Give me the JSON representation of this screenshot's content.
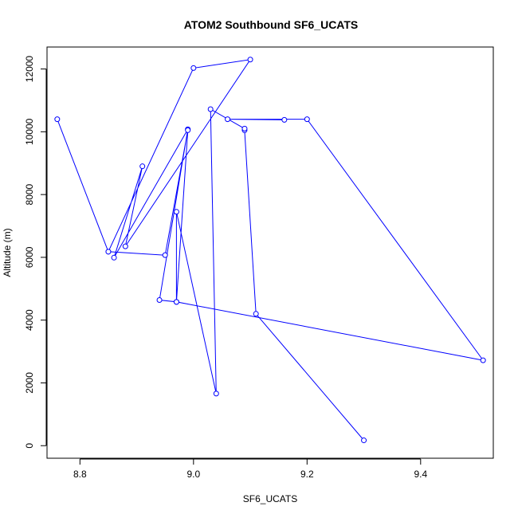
{
  "chart_data": {
    "type": "line",
    "title": "ATOM2 Southbound SF6_UCATS",
    "xlabel": "SF6_UCATS",
    "ylabel": "Altitude (m)",
    "xlim": [
      8.742,
      9.528
    ],
    "ylim": [
      -400,
      12700
    ],
    "x_ticks": [
      8.8,
      9.0,
      9.2,
      9.4
    ],
    "x_tick_labels": [
      "8.8",
      "9.0",
      "9.2",
      "9.4"
    ],
    "y_ticks": [
      0,
      2000,
      4000,
      6000,
      8000,
      10000,
      12000
    ],
    "y_tick_labels": [
      "0",
      "2000",
      "4000",
      "6000",
      "8000",
      "10000",
      "12000"
    ],
    "grid": false,
    "markers": "open-circle",
    "colors": {
      "series": "#0000ff",
      "axis": "#000000",
      "background": "#ffffff"
    },
    "series": [
      {
        "x": [
          9.3,
          9.11,
          9.09,
          9.09,
          9.03,
          9.04,
          8.97,
          8.97,
          8.94,
          8.99,
          8.86,
          8.91,
          8.88,
          9.1,
          9.0,
          8.85,
          8.76,
          8.85,
          8.95,
          8.99,
          8.97,
          9.51,
          9.2,
          9.06,
          9.16
        ],
        "y": [
          170,
          4200,
          10050,
          10100,
          10720,
          1660,
          7450,
          4580,
          4640,
          10080,
          5990,
          8900,
          6350,
          12300,
          12030,
          6180,
          10400,
          6180,
          6070,
          10050,
          4580,
          2720,
          10400,
          10400,
          10380
        ]
      }
    ]
  }
}
